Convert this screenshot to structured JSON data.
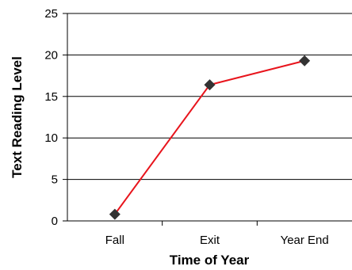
{
  "chart_data": {
    "type": "line",
    "categories": [
      "Fall",
      "Exit",
      "Year End"
    ],
    "series": [
      {
        "values": [
          0.8,
          16.4,
          19.3
        ]
      }
    ],
    "xlabel": "Time of Year",
    "ylabel": "Text Reading Level",
    "ylim": [
      0,
      25
    ],
    "yticks": [
      0,
      5,
      10,
      15,
      20,
      25
    ],
    "grid": true,
    "line_color": "#e8141c",
    "marker_color": "#333333",
    "marker": "diamond"
  }
}
